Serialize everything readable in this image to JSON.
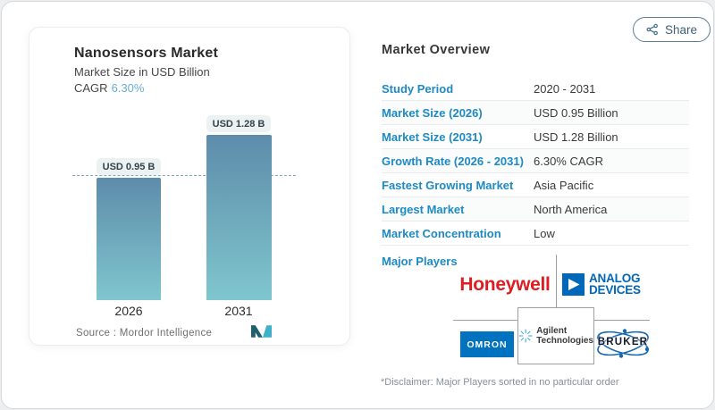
{
  "share": {
    "label": "Share"
  },
  "chart_card": {
    "title": "Nanosensors Market",
    "subtitle": "Market Size in USD Billion",
    "cagr_label": "CAGR",
    "cagr_value": "6.30%",
    "source": "Source :  Mordor Intelligence"
  },
  "chart_data": {
    "type": "bar",
    "title": "Nanosensors Market",
    "ylabel": "Market Size in USD Billion",
    "categories": [
      "2026",
      "2031"
    ],
    "values": [
      0.95,
      1.28
    ],
    "bar_labels": [
      "USD 0.95 B",
      "USD 1.28 B"
    ],
    "cagr_pct": 6.3,
    "reference_line": 0.95,
    "grid": false,
    "legend": false
  },
  "overview": {
    "title": "Market Overview",
    "rows": [
      {
        "label": "Study Period",
        "value": "2020 - 2031"
      },
      {
        "label": "Market Size (2026)",
        "value": "USD 0.95 Billion"
      },
      {
        "label": "Market Size (2031)",
        "value": "USD 1.28 Billion"
      },
      {
        "label": "Growth Rate (2026 - 2031)",
        "value": "6.30% CAGR"
      },
      {
        "label": "Fastest Growing Market",
        "value": "Asia Pacific"
      },
      {
        "label": "Largest Market",
        "value": "North America"
      },
      {
        "label": "Market Concentration",
        "value": "Low"
      }
    ],
    "major_players_label": "Major Players",
    "players": [
      "Honeywell",
      "Analog Devices",
      "OMRON",
      "Agilent Technologies",
      "Bruker"
    ],
    "player_logos": {
      "honeywell": "Honeywell",
      "adi_line1": "ANALOG",
      "adi_line2": "DEVICES",
      "omron": "OMRON",
      "agilent_line1": "Agilent",
      "agilent_line2": "Technologies",
      "bruker": "BRUKER"
    },
    "disclaimer": "*Disclaimer: Major Players sorted in no particular order"
  },
  "colors": {
    "table_label_blue": "#1d8ac4",
    "cagr_blue": "#66aed6",
    "bar_gradient_top": "#5d8cab",
    "bar_gradient_bottom": "#7fc6ce",
    "dashed_line": "#7fa6c0",
    "badge_bg": "#ecf1f1",
    "share_border": "#5b7f94",
    "honeywell_red": "#dd1d21",
    "adi_blue": "#0067b9",
    "omron_blue": "#0072c0",
    "agilent_blue": "#2aa0dc",
    "bruker_blue": "#1668b2",
    "mordor_dark_teal": "#1f5f6d",
    "mordor_teal": "#3eb1c8"
  }
}
